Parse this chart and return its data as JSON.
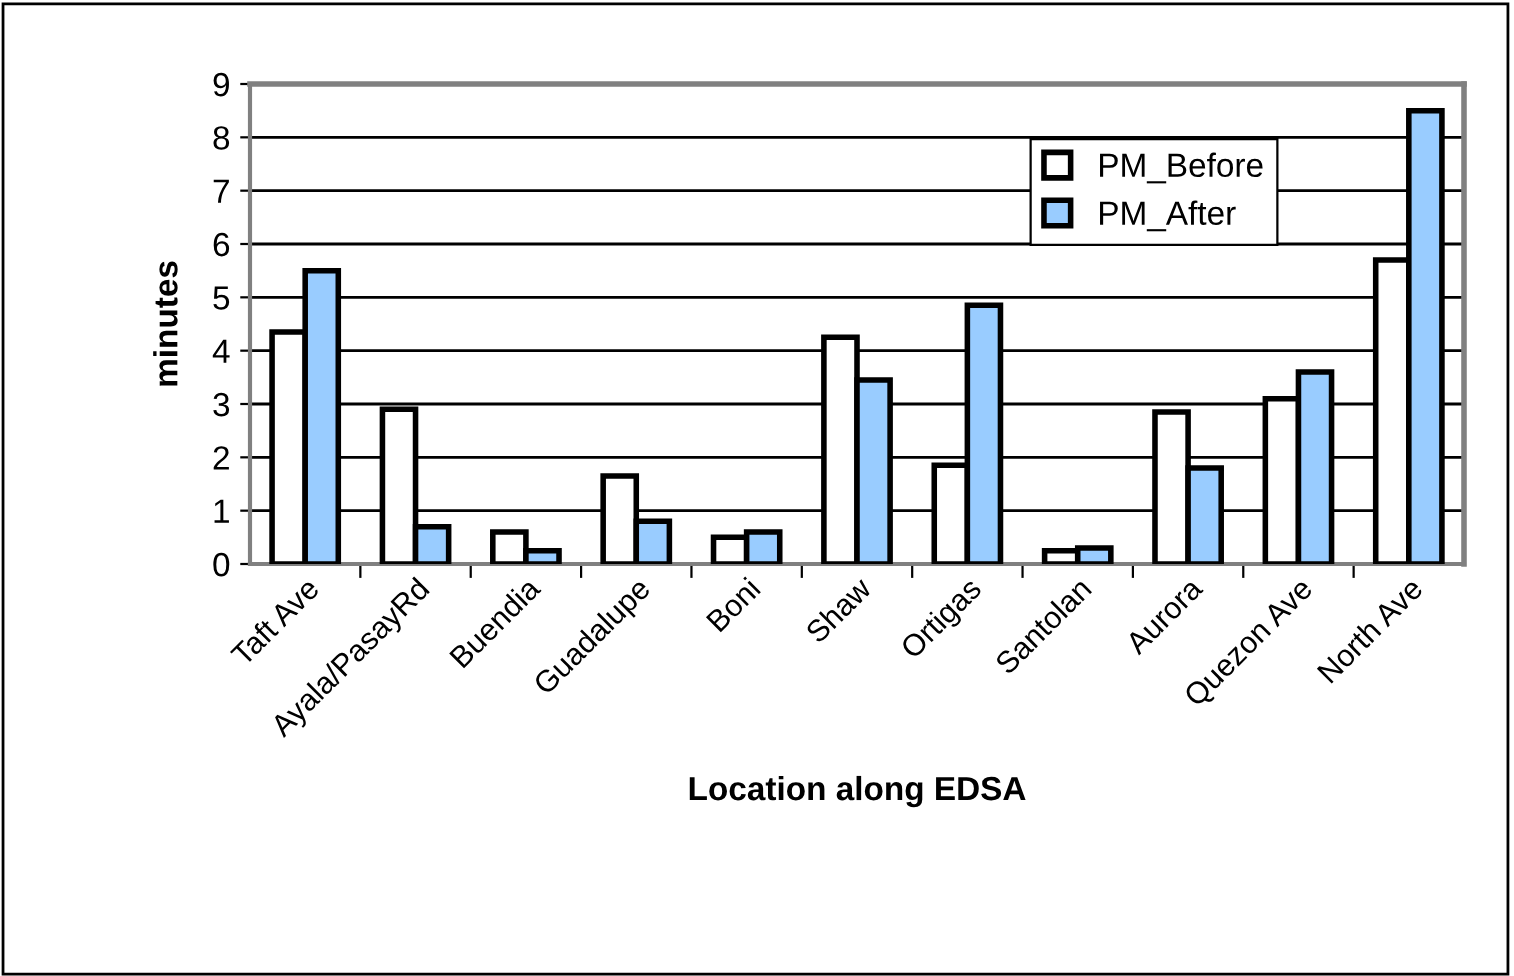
{
  "chart_data": {
    "type": "bar",
    "xlabel": "Location along EDSA",
    "ylabel": "minutes",
    "categories": [
      "Taft Ave",
      "Ayala/PasayRd",
      "Buendia",
      "Guadalupe",
      "Boni",
      "Shaw",
      "Ortigas",
      "Santolan",
      "Aurora",
      "Quezon Ave",
      "North Ave"
    ],
    "series": [
      {
        "name": "PM_Before",
        "color": "#ffffff",
        "values": [
          4.35,
          2.9,
          0.6,
          1.65,
          0.5,
          4.25,
          1.85,
          0.25,
          2.85,
          3.1,
          5.7
        ]
      },
      {
        "name": "PM_After",
        "color": "#99ccff",
        "values": [
          5.5,
          0.7,
          0.25,
          0.8,
          0.6,
          3.45,
          4.85,
          0.3,
          1.8,
          3.6,
          8.5
        ]
      }
    ],
    "ylim": [
      0,
      9
    ],
    "yticks": [
      0,
      1,
      2,
      3,
      4,
      5,
      6,
      7,
      8,
      9
    ],
    "grid": "y",
    "legend": "top right"
  }
}
